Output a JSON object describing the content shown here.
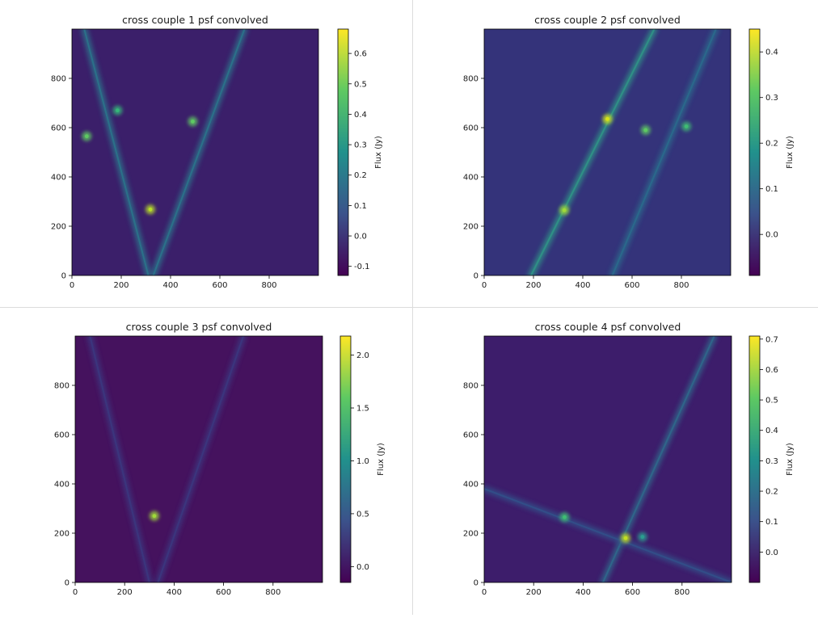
{
  "colormap": [
    "#440154",
    "#3b528b",
    "#21918c",
    "#5ec962",
    "#fde725"
  ],
  "chart_data": [
    {
      "type": "heatmap",
      "title": "cross couple 1 psf convolved",
      "xticks": [
        0,
        200,
        400,
        600,
        800
      ],
      "yticks": [
        0,
        200,
        400,
        600,
        800
      ],
      "xlim": [
        0,
        1000
      ],
      "ylim": [
        0,
        1000
      ],
      "colorbar": {
        "label": "Flux (Jy)",
        "range": [
          -0.13,
          0.68
        ],
        "ticks": [
          "-0.1",
          "0.0",
          "0.1",
          "0.2",
          "0.3",
          "0.4",
          "0.5",
          "0.6"
        ],
        "tick_values": [
          -0.1,
          0.0,
          0.1,
          0.2,
          0.3,
          0.4,
          0.5,
          0.6
        ]
      },
      "background": "#3b1f6a",
      "features": [
        {
          "kind": "line",
          "from": [
            330,
            0
          ],
          "to": [
            700,
            1000
          ],
          "color": "#2a7b8e"
        },
        {
          "kind": "line",
          "from": [
            310,
            0
          ],
          "to": [
            50,
            1000
          ],
          "color": "#2a7b8e"
        },
        {
          "kind": "peak",
          "at": [
            318,
            268
          ],
          "color": "#b8de29"
        },
        {
          "kind": "peak",
          "at": [
            60,
            565
          ],
          "color": "#5ec962"
        },
        {
          "kind": "peak",
          "at": [
            490,
            625
          ],
          "color": "#5ec962"
        },
        {
          "kind": "peak",
          "at": [
            185,
            670
          ],
          "color": "#35b779"
        }
      ]
    },
    {
      "type": "heatmap",
      "title": "cross couple 2 psf convolved",
      "xticks": [
        0,
        200,
        400,
        600,
        800
      ],
      "yticks": [
        0,
        200,
        400,
        600,
        800
      ],
      "xlim": [
        0,
        1000
      ],
      "ylim": [
        0,
        1000
      ],
      "colorbar": {
        "label": "Flux (Jy)",
        "range": [
          -0.09,
          0.45
        ],
        "ticks": [
          "0.0",
          "0.1",
          "0.2",
          "0.3",
          "0.4"
        ],
        "tick_values": [
          0.0,
          0.1,
          0.2,
          0.3,
          0.4
        ]
      },
      "background": "#34337a",
      "features": [
        {
          "kind": "line",
          "from": [
            190,
            0
          ],
          "to": [
            690,
            1000
          ],
          "color": "#2f9c88"
        },
        {
          "kind": "line",
          "from": [
            520,
            0
          ],
          "to": [
            940,
            1000
          ],
          "color": "#2a6f8e"
        },
        {
          "kind": "peak",
          "at": [
            500,
            635
          ],
          "color": "#d5e21a"
        },
        {
          "kind": "peak",
          "at": [
            325,
            265
          ],
          "color": "#a0da39"
        },
        {
          "kind": "peak",
          "at": [
            655,
            590
          ],
          "color": "#5ec962"
        },
        {
          "kind": "peak",
          "at": [
            820,
            605
          ],
          "color": "#3fbc73"
        }
      ]
    },
    {
      "type": "heatmap",
      "title": "cross couple 3 psf convolved",
      "xticks": [
        0,
        200,
        400,
        600,
        800
      ],
      "yticks": [
        0,
        200,
        400,
        600,
        800
      ],
      "xlim": [
        0,
        1000
      ],
      "ylim": [
        0,
        1000
      ],
      "colorbar": {
        "label": "Flux (Jy)",
        "range": [
          -0.15,
          2.18
        ],
        "ticks": [
          "0.0",
          "0.5",
          "1.0",
          "1.5",
          "2.0"
        ],
        "tick_values": [
          0.0,
          0.5,
          1.0,
          1.5,
          2.0
        ]
      },
      "background": "#45125e",
      "features": [
        {
          "kind": "line",
          "from": [
            335,
            0
          ],
          "to": [
            680,
            1000
          ],
          "color": "#3a3a82"
        },
        {
          "kind": "line",
          "from": [
            300,
            0
          ],
          "to": [
            60,
            1000
          ],
          "color": "#3a3a82"
        },
        {
          "kind": "peak",
          "at": [
            320,
            270
          ],
          "color": "#9fda3a"
        }
      ]
    },
    {
      "type": "heatmap",
      "title": "cross couple 4 psf convolved",
      "xticks": [
        0,
        200,
        400,
        600,
        800
      ],
      "yticks": [
        0,
        200,
        400,
        600,
        800
      ],
      "xlim": [
        0,
        1000
      ],
      "ylim": [
        0,
        1000
      ],
      "colorbar": {
        "label": "Flux (Jy)",
        "range": [
          -0.1,
          0.71
        ],
        "ticks": [
          "0.0",
          "0.1",
          "0.2",
          "0.3",
          "0.4",
          "0.5",
          "0.6",
          "0.7"
        ],
        "tick_values": [
          0.0,
          0.1,
          0.2,
          0.3,
          0.4,
          0.5,
          0.6,
          0.7
        ]
      },
      "background": "#3d1d6b",
      "features": [
        {
          "kind": "line",
          "from": [
            480,
            0
          ],
          "to": [
            930,
            1000
          ],
          "color": "#2e6f8e"
        },
        {
          "kind": "line",
          "from": [
            0,
            380
          ],
          "to": [
            1000,
            0
          ],
          "color": "#31548c"
        },
        {
          "kind": "peak",
          "at": [
            572,
            180
          ],
          "color": "#c2df23"
        },
        {
          "kind": "peak",
          "at": [
            325,
            265
          ],
          "color": "#3fbc73"
        },
        {
          "kind": "peak",
          "at": [
            640,
            185
          ],
          "color": "#2a9d8f"
        }
      ]
    }
  ]
}
